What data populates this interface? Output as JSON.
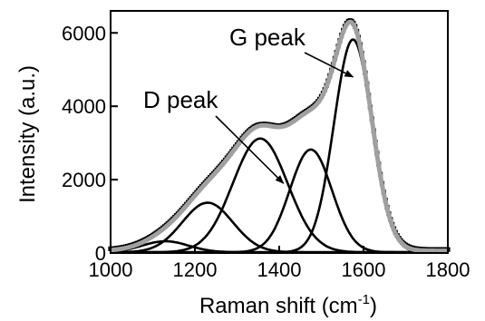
{
  "chart_data": {
    "type": "line",
    "title": "",
    "xlabel": "Raman shift (cm",
    "xlabel_sup": "-1",
    "xlabel_close": ")",
    "ylabel": "Intensity (a.u.)",
    "xlim": [
      1000,
      1800
    ],
    "ylim": [
      0,
      6600
    ],
    "x_ticks": [
      1000,
      1200,
      1400,
      1600,
      1800
    ],
    "x_tick_labels": [
      "1000",
      "1200",
      "1400",
      "1600",
      "1800"
    ],
    "y_ticks": [
      0,
      2000,
      4000,
      6000
    ],
    "y_tick_labels": [
      "0",
      "2000",
      "4000",
      "6000"
    ],
    "grid": false,
    "annotations": [
      {
        "text": "D peak",
        "points_to": [
          1410,
          1900
        ]
      },
      {
        "text": "G peak",
        "points_to": [
          1575,
          4800
        ]
      }
    ],
    "series": [
      {
        "role": "measured",
        "style": "square markers",
        "color": "#000000"
      },
      {
        "role": "fit",
        "style": "thick line",
        "color": "#a0a0a0"
      },
      {
        "role": "components",
        "style": "thin line",
        "color": "#000000",
        "peaks": [
          {
            "center": 1130,
            "height": 300,
            "width": 55
          },
          {
            "center": 1230,
            "height": 1350,
            "width": 60
          },
          {
            "center": 1355,
            "height": 3100,
            "width": 65
          },
          {
            "center": 1475,
            "height": 2800,
            "width": 50
          },
          {
            "center": 1575,
            "height": 5800,
            "width": 45
          }
        ]
      }
    ]
  }
}
